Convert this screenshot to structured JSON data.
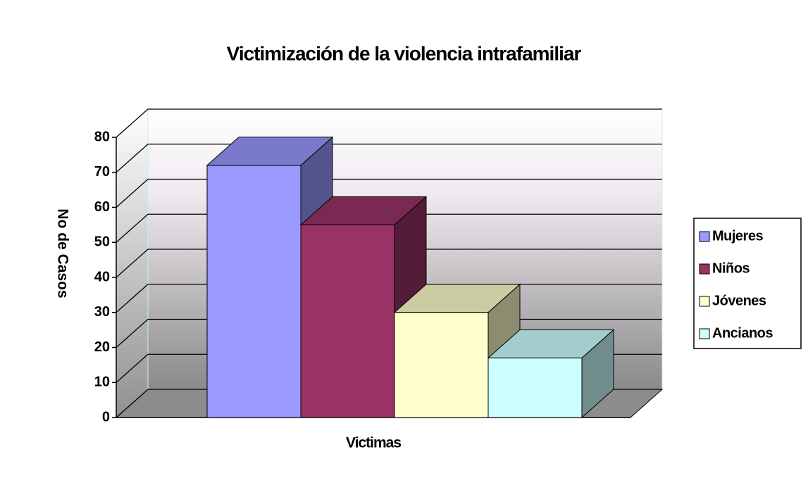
{
  "chart_data": {
    "type": "bar3d",
    "title": "Victimización de la violencia intrafamiliar",
    "x_label": "Victimas",
    "y_label": "No de Casos",
    "categories": [
      "Victimas"
    ],
    "series": [
      {
        "name": "Mujeres",
        "color": "#9999ff",
        "values": [
          72
        ]
      },
      {
        "name": "Niños",
        "color": "#993366",
        "values": [
          55
        ]
      },
      {
        "name": "Jóvenes",
        "color": "#ffffcc",
        "values": [
          30
        ]
      },
      {
        "name": "Ancianos",
        "color": "#ccffff",
        "values": [
          17
        ]
      }
    ],
    "ylim": [
      0,
      80
    ],
    "yticks": [
      0,
      10,
      20,
      30,
      40,
      50,
      60,
      70,
      80
    ],
    "grid": true,
    "legend": "right"
  }
}
